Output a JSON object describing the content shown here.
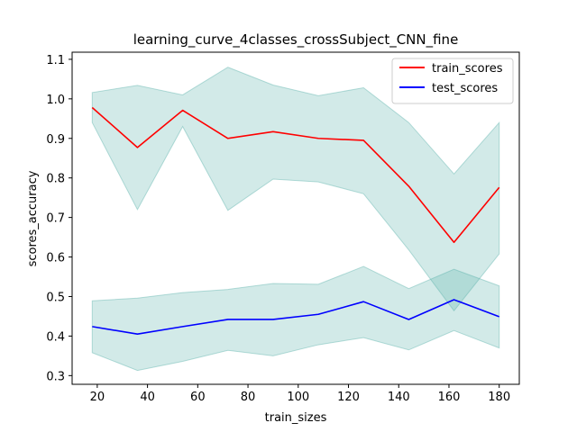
{
  "chart_data": {
    "type": "line",
    "title": "learning_curve_4classes_crossSubject_CNN_fine",
    "xlabel": "train_sizes",
    "ylabel": "scores_accuracy",
    "xlim": [
      10,
      188
    ],
    "ylim": [
      0.278,
      1.118
    ],
    "xticks": [
      20,
      40,
      60,
      80,
      100,
      120,
      140,
      160,
      180
    ],
    "xtick_labels": [
      "20",
      "40",
      "60",
      "80",
      "100",
      "120",
      "140",
      "160",
      "180"
    ],
    "yticks": [
      0.3,
      0.4,
      0.5,
      0.6,
      0.7,
      0.8,
      0.9,
      1.0,
      1.1
    ],
    "ytick_labels": [
      "0.3",
      "0.4",
      "0.5",
      "0.6",
      "0.7",
      "0.8",
      "0.9",
      "1.0",
      "1.1"
    ],
    "grid": false,
    "legend_position": "top-right",
    "x": [
      18,
      36,
      54,
      72,
      90,
      108,
      126,
      144,
      162,
      180
    ],
    "series": [
      {
        "name": "train_scores",
        "color": "#ff0000",
        "values": [
          0.978,
          0.877,
          0.971,
          0.9,
          0.917,
          0.9,
          0.895,
          0.779,
          0.637,
          0.776
        ],
        "band_upper": [
          1.016,
          1.034,
          1.01,
          1.08,
          1.035,
          1.008,
          1.028,
          0.94,
          0.81,
          0.94
        ],
        "band_lower": [
          0.94,
          0.72,
          0.93,
          0.718,
          0.797,
          0.79,
          0.76,
          0.618,
          0.464,
          0.608
        ],
        "band_color": "#5fb3ad"
      },
      {
        "name": "test_scores",
        "color": "#0000ff",
        "values": [
          0.424,
          0.405,
          0.424,
          0.442,
          0.442,
          0.455,
          0.487,
          0.442,
          0.492,
          0.449
        ],
        "band_upper": [
          0.489,
          0.496,
          0.51,
          0.518,
          0.533,
          0.531,
          0.576,
          0.52,
          0.569,
          0.527
        ],
        "band_lower": [
          0.358,
          0.313,
          0.336,
          0.364,
          0.35,
          0.378,
          0.396,
          0.365,
          0.414,
          0.37
        ],
        "band_color": "#5fb3ad"
      }
    ]
  }
}
